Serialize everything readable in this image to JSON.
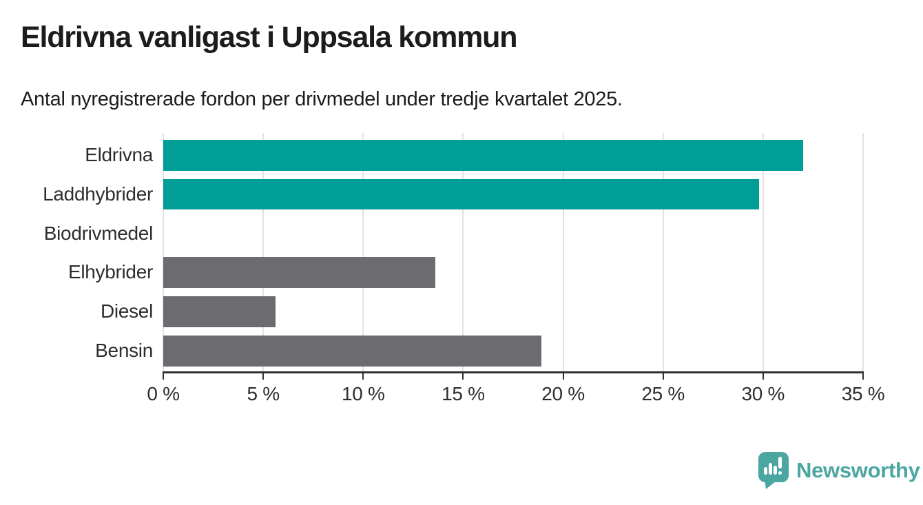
{
  "chart_data": {
    "type": "bar",
    "orientation": "horizontal",
    "title": "Eldrivna vanligast i Uppsala kommun",
    "subtitle": "Antal nyregistrerade fordon per drivmedel under tredje kvartalet 2025.",
    "categories": [
      "Eldrivna",
      "Laddhybrider",
      "Biodrivmedel",
      "Elhybrider",
      "Diesel",
      "Bensin"
    ],
    "values": [
      32,
      29.8,
      0,
      13.6,
      5.6,
      18.9
    ],
    "value_unit": "%",
    "bar_colors": [
      "#009e96",
      "#009e96",
      "#6b6b70",
      "#6b6b70",
      "#6b6b70",
      "#6b6b70"
    ],
    "highlight_color": "#009e96",
    "default_color": "#6b6b70",
    "xlim": [
      0,
      35
    ],
    "x_ticks": [
      0,
      5,
      10,
      15,
      20,
      25,
      30,
      35
    ],
    "x_tick_labels": [
      "0 %",
      "5 %",
      "10 %",
      "15 %",
      "20 %",
      "25 %",
      "30 %",
      "35 %"
    ],
    "grid": "vertical",
    "grid_color": "#e3e3e3",
    "axis_color": "#303030",
    "legend": "none"
  },
  "footer": {
    "brand": "Newsworthy",
    "brand_color": "#4ba6a2",
    "icon": "newsworthy-speech-bubble-bar-chart-icon"
  }
}
